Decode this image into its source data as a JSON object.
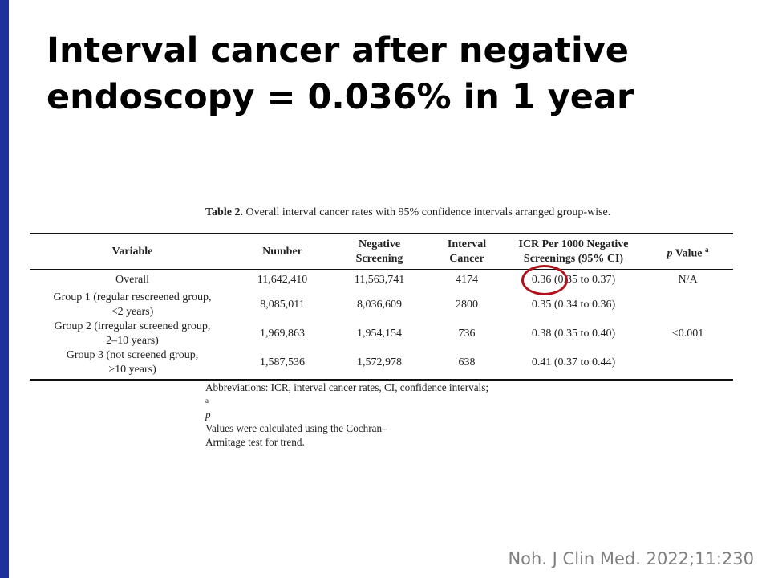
{
  "slide": {
    "title_line1": "Interval cancer after negative",
    "title_line2": "endoscopy = 0.036% in 1 year",
    "citation": "Noh. J Clin Med. 2022;11:230",
    "accent_color": "#1e2f9e",
    "highlight_color": "#b0121b"
  },
  "table": {
    "caption_label": "Table 2.",
    "caption_text": " Overall interval cancer rates with 95% confidence intervals arranged group-wise.",
    "headers": {
      "variable": "Variable",
      "number": "Number",
      "negative_line1": "Negative",
      "negative_line2": "Screening",
      "interval_line1": "Interval",
      "interval_line2": "Cancer",
      "icr_line1": "ICR Per 1000 Negative",
      "icr_line2": "Screenings (95% CI)",
      "pvalue_p": "p",
      "pvalue_text": " Value ",
      "pvalue_sup": "a"
    },
    "rows": [
      {
        "variable_line1": "Overall",
        "variable_line2": "",
        "number": "11,642,410",
        "negative_screening": "11,563,741",
        "interval_cancer": "4174",
        "icr": "0.36 (0.35 to 0.37)",
        "p_value": "N/A"
      },
      {
        "variable_line1": "Group 1 (regular rescreened group,",
        "variable_line2": "<2 years)",
        "number": "8,085,011",
        "negative_screening": "8,036,609",
        "interval_cancer": "2800",
        "icr": "0.35 (0.34 to 0.36)",
        "p_value": ""
      },
      {
        "variable_line1": "Group 2 (irregular screened group,",
        "variable_line2": "2–10 years)",
        "number": "1,969,863",
        "negative_screening": "1,954,154",
        "interval_cancer": "736",
        "icr": "0.38 (0.35 to 0.40)",
        "p_value": "<0.001"
      },
      {
        "variable_line1": "Group 3 (not screened group,",
        "variable_line2": ">10 years)",
        "number": "1,587,536",
        "negative_screening": "1,572,978",
        "interval_cancer": "638",
        "icr": "0.41 (0.37 to 0.44)",
        "p_value": ""
      }
    ],
    "footnote_line1_a": "Abbreviations: ICR, interval cancer rates, CI, confidence intervals; ",
    "footnote_sup": "a",
    "footnote_p": " p",
    "footnote_line1_b": " Values were calculated using the Cochran–",
    "footnote_line2": "Armitage test for trend."
  }
}
